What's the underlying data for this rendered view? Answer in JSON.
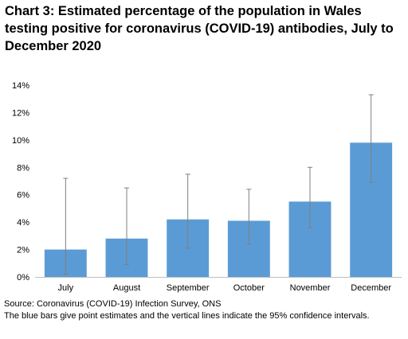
{
  "title": "Chart 3: Estimated percentage of the population in Wales testing positive for coronavirus (COVID-19) antibodies, July to December 2020",
  "source": "Source: Coronavirus (COVID-19) Infection Survey, ONS",
  "note": "The blue bars give point estimates and the vertical lines indicate the 95% confidence intervals.",
  "colors": {
    "bar": "#5b9bd5",
    "error_bar": "#7f7f7f",
    "axis": "#bfbfbf"
  },
  "chart_data": {
    "type": "bar",
    "title": "Chart 3: Estimated percentage of the population in Wales testing positive for coronavirus (COVID-19) antibodies, July to December 2020",
    "categories": [
      "July",
      "August",
      "September",
      "October",
      "November",
      "December"
    ],
    "values": [
      2.0,
      2.8,
      4.2,
      4.1,
      5.5,
      9.8
    ],
    "ci_lower": [
      0.2,
      0.9,
      2.1,
      2.4,
      3.6,
      6.9
    ],
    "ci_upper": [
      7.2,
      6.5,
      7.5,
      6.4,
      8.0,
      13.3
    ],
    "ylim": [
      0,
      14
    ],
    "y_ticks": [
      "0%",
      "2%",
      "4%",
      "6%",
      "8%",
      "10%",
      "12%",
      "14%"
    ],
    "xlabel": "",
    "ylabel": "",
    "grid": false,
    "legend": "none"
  }
}
